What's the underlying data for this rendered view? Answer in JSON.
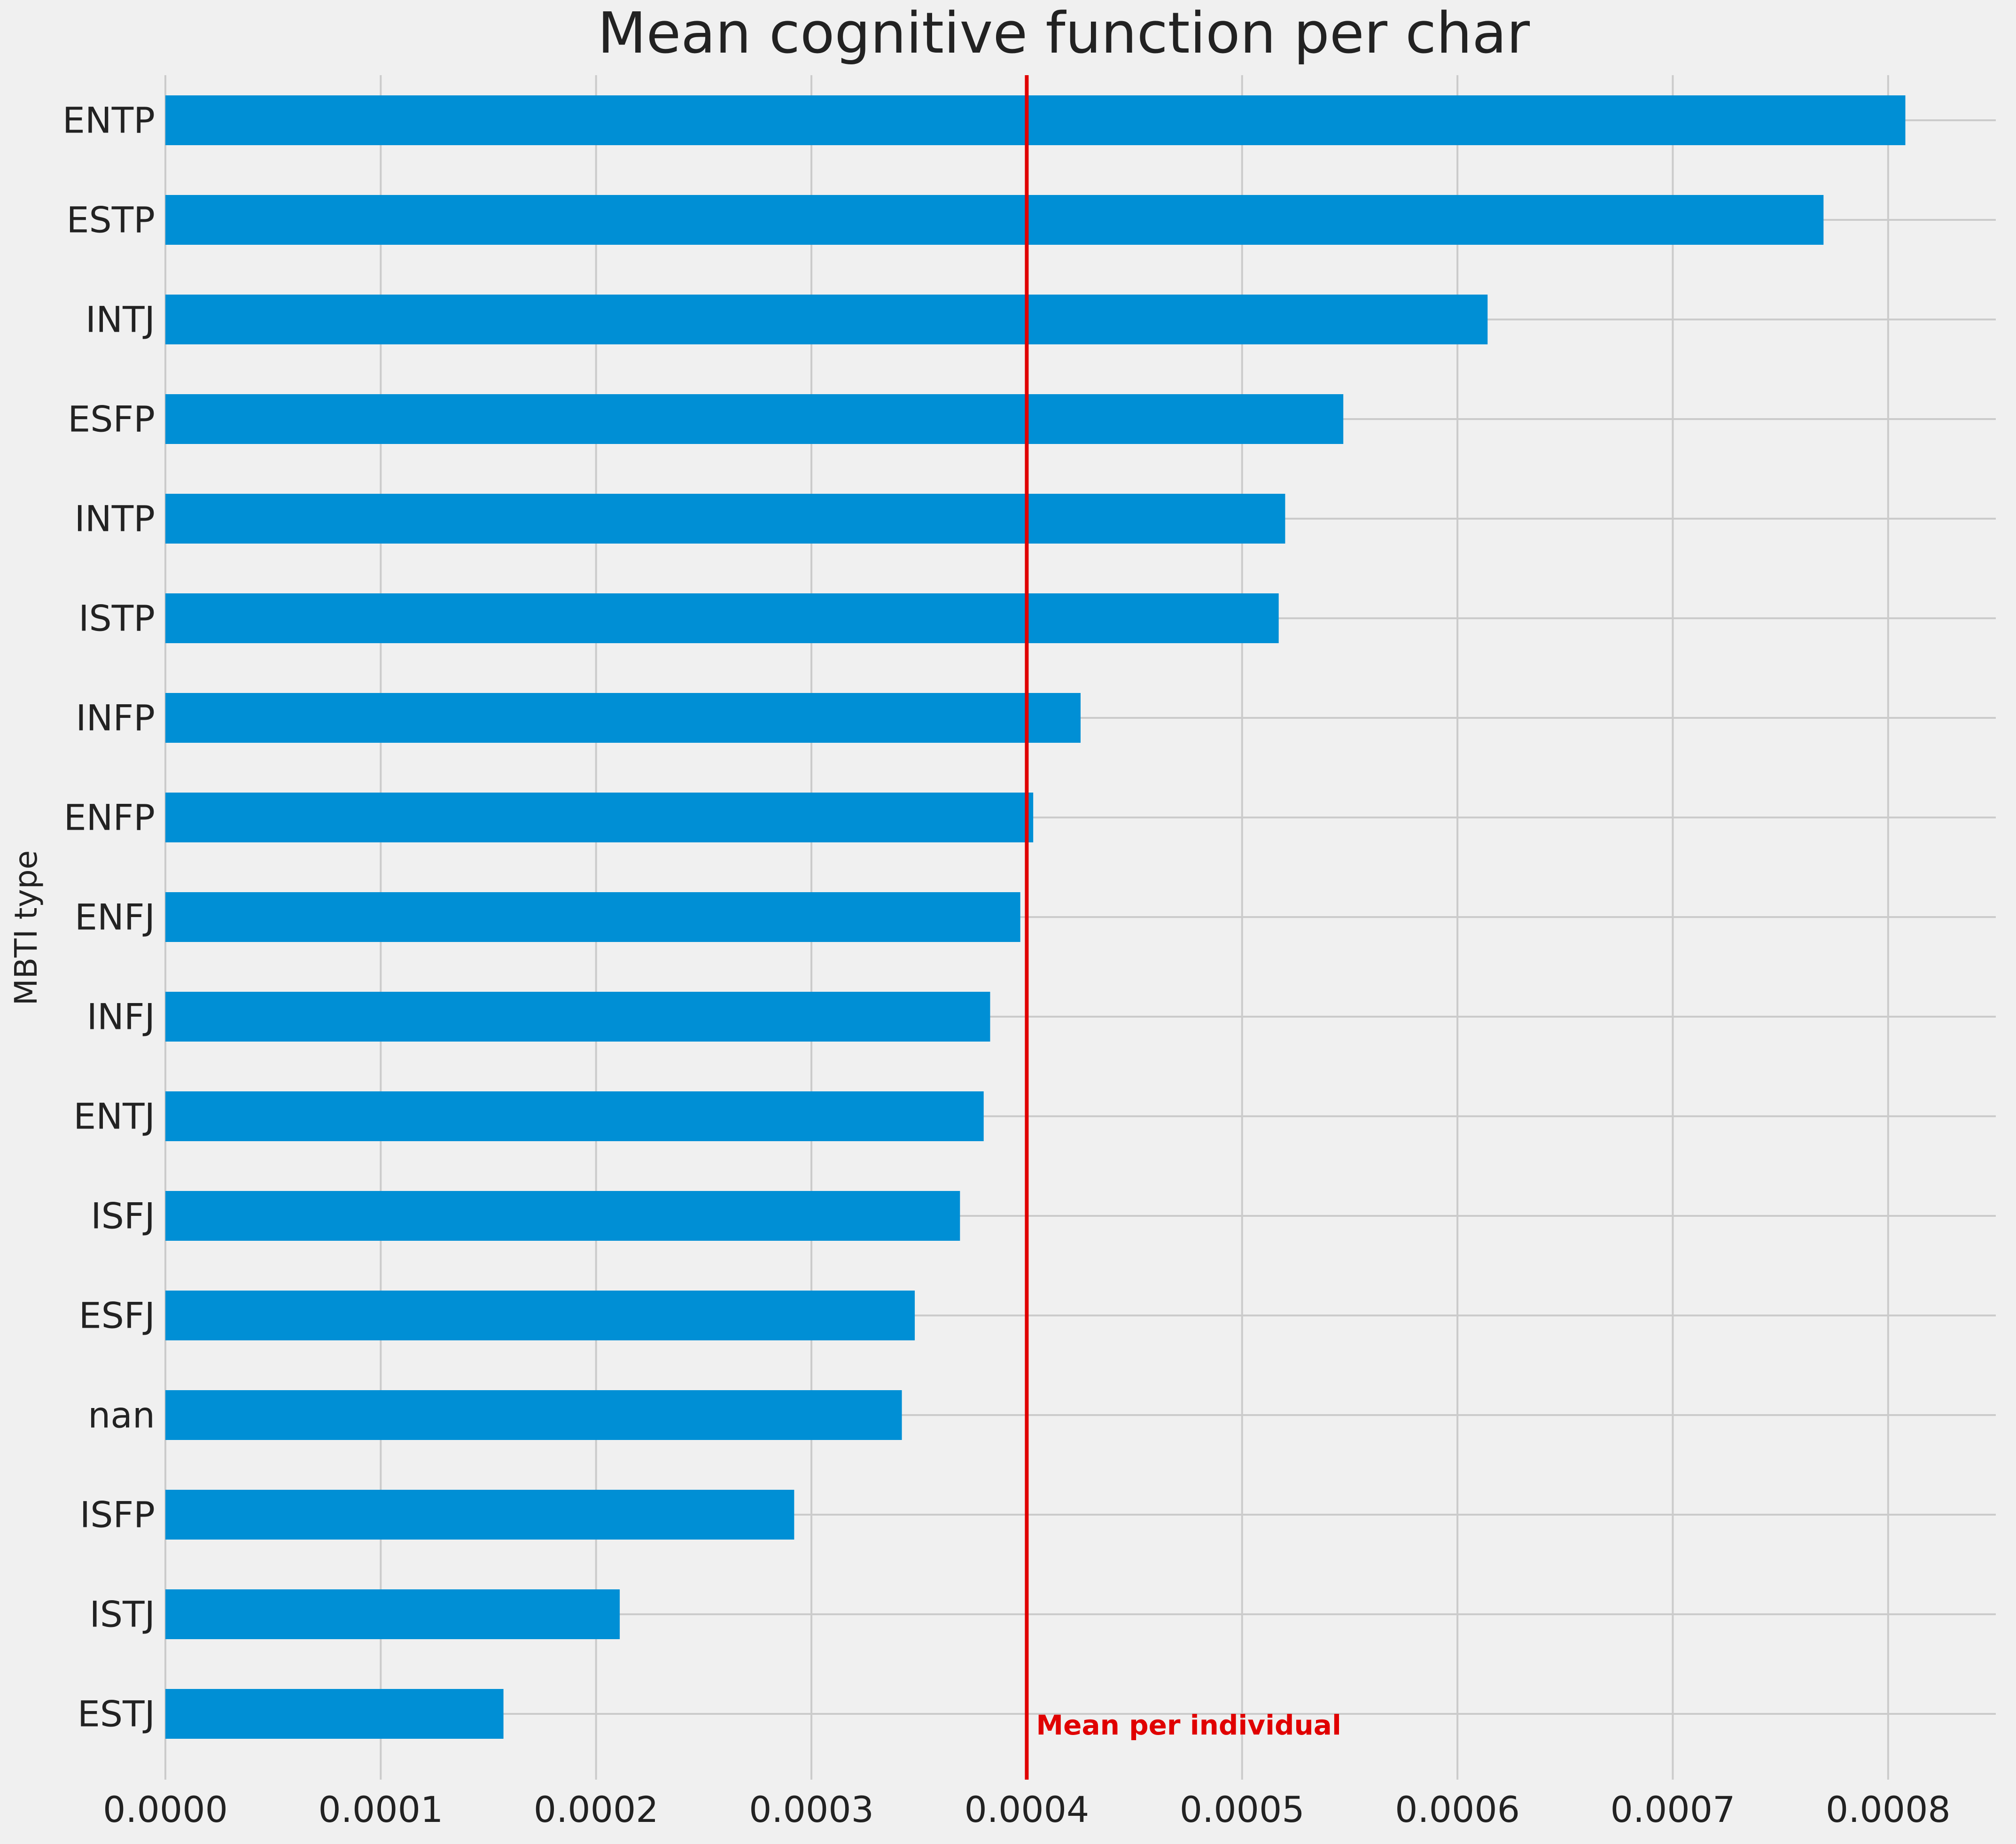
{
  "chart_data": {
    "type": "bar",
    "orientation": "horizontal",
    "title": "Mean cognitive function per char",
    "xlabel": "",
    "ylabel": "MBTI type",
    "categories": [
      "ENTP",
      "ESTP",
      "INTJ",
      "ESFP",
      "INTP",
      "ISTP",
      "INFP",
      "ENFP",
      "ENFJ",
      "INFJ",
      "ENTJ",
      "ISFJ",
      "ESFJ",
      "nan",
      "ISFP",
      "ISTJ",
      "ESTJ"
    ],
    "values": [
      0.000808,
      0.00077,
      0.000614,
      0.000547,
      0.00052,
      0.000517,
      0.000425,
      0.000403,
      0.000397,
      0.000383,
      0.00038,
      0.000369,
      0.000348,
      0.000342,
      0.000292,
      0.000211,
      0.000157
    ],
    "xlim": [
      0,
      0.00085
    ],
    "xticks": [
      "0.0000",
      "0.0001",
      "0.0002",
      "0.0003",
      "0.0004",
      "0.0005",
      "0.0006",
      "0.0007",
      "0.0008"
    ],
    "xtick_values": [
      0,
      0.0001,
      0.0002,
      0.0003,
      0.0004,
      0.0005,
      0.0006,
      0.0007,
      0.0008
    ],
    "grid": true,
    "bar_color": "#008fd5",
    "reference_line": {
      "value": 0.0004,
      "color": "#e00000",
      "label": "Mean per individual"
    }
  }
}
